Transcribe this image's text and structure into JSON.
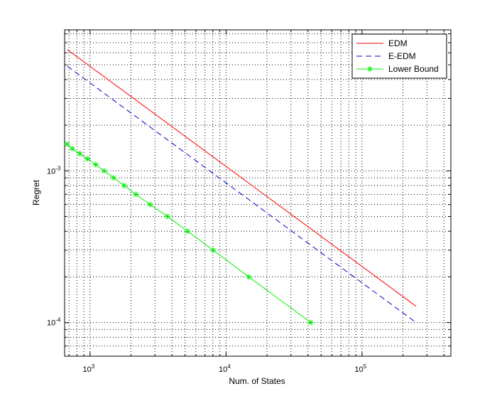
{
  "chart_data": {
    "type": "line",
    "title": "",
    "xlabel": "Num. of States",
    "ylabel": "Regret",
    "xscale": "log",
    "yscale": "log",
    "xlim": [
      650,
      450000
    ],
    "ylim": [
      6e-05,
      0.0085
    ],
    "x_major_ticks": [
      {
        "value": 1000,
        "base": "10",
        "exp": "3"
      },
      {
        "value": 10000,
        "base": "10",
        "exp": "4"
      },
      {
        "value": 100000,
        "base": "10",
        "exp": "5"
      }
    ],
    "y_major_ticks": [
      {
        "value": 0.0001,
        "base": "10",
        "exp": "-4"
      },
      {
        "value": 0.001,
        "base": "10",
        "exp": "-3"
      }
    ],
    "grid": "on",
    "legend_position": "top-right",
    "series": [
      {
        "name": "EDM",
        "color": "#ff0000",
        "style": "solid",
        "marker": "none",
        "x": [
          680,
          250000
        ],
        "y": [
          0.0063,
          0.000128
        ]
      },
      {
        "name": "E-EDM",
        "color": "#0000cc",
        "style": "dashed",
        "marker": "none",
        "x": [
          680,
          250000
        ],
        "y": [
          0.0049,
          0.0001
        ]
      },
      {
        "name": "Lower Bound",
        "color": "#00ee00",
        "style": "solid",
        "marker": "asterisk",
        "x": [
          680,
          740,
          840,
          960,
          1100,
          1270,
          1490,
          1780,
          2170,
          2760,
          3710,
          5220,
          8040,
          14700,
          42000
        ],
        "y": [
          0.0015,
          0.0014,
          0.0013,
          0.0012,
          0.0011,
          0.001,
          0.0009,
          0.0008,
          0.0007,
          0.0006,
          0.0005,
          0.0004,
          0.0003,
          0.0002,
          0.0001
        ]
      }
    ]
  }
}
